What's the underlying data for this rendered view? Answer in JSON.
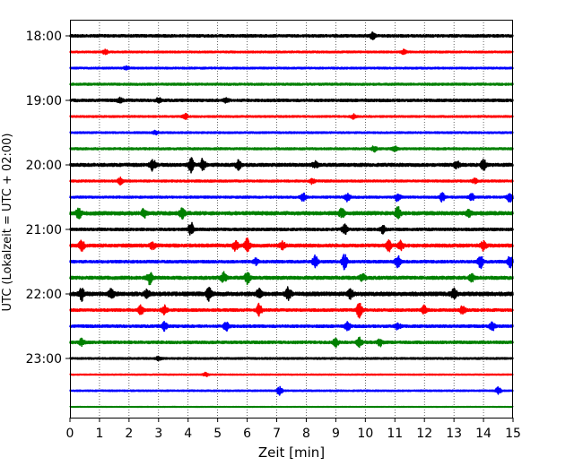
{
  "chart_data": {
    "type": "line",
    "subtype": "helicorder",
    "xlabel": "Zeit  [min]",
    "ylabel": "UTC (Lokalzeit = UTC + 02:00)",
    "xlim": [
      0,
      15
    ],
    "x_ticks": [
      "0",
      "1",
      "2",
      "3",
      "4",
      "5",
      "6",
      "7",
      "8",
      "9",
      "10",
      "11",
      "12",
      "13",
      "14",
      "15"
    ],
    "y_ticks": [
      "18:00",
      "19:00",
      "20:00",
      "21:00",
      "22:00",
      "23:00"
    ],
    "grid": "vertical dotted at each minute",
    "colors": [
      "#000000",
      "#ff0000",
      "#0000ff",
      "#008000"
    ],
    "traces": [
      {
        "start": "18:00",
        "color": "#000000",
        "level": 0.15,
        "events": [
          [
            10.25,
            0.35
          ]
        ]
      },
      {
        "start": "18:15",
        "color": "#ff0000",
        "level": 0.1,
        "events": [
          [
            1.2,
            0.25
          ],
          [
            11.3,
            0.25
          ]
        ]
      },
      {
        "start": "18:30",
        "color": "#0000ff",
        "level": 0.1,
        "events": [
          [
            1.9,
            0.2
          ]
        ]
      },
      {
        "start": "18:45",
        "color": "#008000",
        "level": 0.12,
        "events": []
      },
      {
        "start": "19:00",
        "color": "#000000",
        "level": 0.15,
        "events": [
          [
            1.7,
            0.25
          ],
          [
            3.0,
            0.25
          ],
          [
            5.3,
            0.25
          ]
        ]
      },
      {
        "start": "19:15",
        "color": "#ff0000",
        "level": 0.1,
        "events": [
          [
            3.9,
            0.3
          ],
          [
            9.6,
            0.25
          ]
        ]
      },
      {
        "start": "19:30",
        "color": "#0000ff",
        "level": 0.1,
        "events": [
          [
            2.9,
            0.2
          ]
        ]
      },
      {
        "start": "19:45",
        "color": "#008000",
        "level": 0.12,
        "events": [
          [
            10.3,
            0.3
          ],
          [
            11.0,
            0.25
          ]
        ]
      },
      {
        "start": "20:00",
        "color": "#000000",
        "level": 0.18,
        "events": [
          [
            2.8,
            0.7
          ],
          [
            4.1,
            0.8
          ],
          [
            4.5,
            0.7
          ],
          [
            5.7,
            0.5
          ],
          [
            8.3,
            0.4
          ],
          [
            13.1,
            0.4
          ],
          [
            14.0,
            0.6
          ]
        ]
      },
      {
        "start": "20:15",
        "color": "#ff0000",
        "level": 0.12,
        "events": [
          [
            1.7,
            0.4
          ],
          [
            8.2,
            0.3
          ],
          [
            13.7,
            0.3
          ]
        ]
      },
      {
        "start": "20:30",
        "color": "#0000ff",
        "level": 0.12,
        "events": [
          [
            7.9,
            0.5
          ],
          [
            9.4,
            0.5
          ],
          [
            11.1,
            0.5
          ],
          [
            12.6,
            0.5
          ],
          [
            13.6,
            0.4
          ],
          [
            14.9,
            0.6
          ]
        ]
      },
      {
        "start": "20:45",
        "color": "#008000",
        "level": 0.2,
        "events": [
          [
            0.3,
            0.6
          ],
          [
            2.5,
            0.5
          ],
          [
            3.8,
            0.6
          ],
          [
            9.2,
            0.5
          ],
          [
            11.1,
            0.7
          ],
          [
            13.5,
            0.4
          ]
        ]
      },
      {
        "start": "21:00",
        "color": "#000000",
        "level": 0.15,
        "events": [
          [
            4.1,
            0.8
          ],
          [
            9.3,
            0.6
          ],
          [
            10.6,
            0.4
          ]
        ]
      },
      {
        "start": "21:15",
        "color": "#ff0000",
        "level": 0.18,
        "events": [
          [
            0.4,
            0.6
          ],
          [
            2.8,
            0.4
          ],
          [
            5.6,
            0.6
          ],
          [
            6.0,
            0.8
          ],
          [
            7.2,
            0.4
          ],
          [
            10.8,
            0.6
          ],
          [
            11.2,
            0.5
          ],
          [
            14.0,
            0.6
          ]
        ]
      },
      {
        "start": "21:30",
        "color": "#0000ff",
        "level": 0.15,
        "events": [
          [
            6.3,
            0.4
          ],
          [
            8.3,
            0.7
          ],
          [
            9.3,
            0.9
          ],
          [
            11.1,
            0.8
          ],
          [
            13.9,
            0.8
          ],
          [
            14.9,
            0.7
          ]
        ]
      },
      {
        "start": "21:45",
        "color": "#008000",
        "level": 0.18,
        "events": [
          [
            2.7,
            0.7
          ],
          [
            5.2,
            0.6
          ],
          [
            6.0,
            0.7
          ],
          [
            9.9,
            0.5
          ],
          [
            13.6,
            0.4
          ]
        ]
      },
      {
        "start": "22:00",
        "color": "#000000",
        "level": 0.22,
        "events": [
          [
            0.4,
            0.7
          ],
          [
            1.4,
            0.5
          ],
          [
            2.6,
            0.5
          ],
          [
            4.7,
            0.7
          ],
          [
            6.4,
            0.5
          ],
          [
            7.4,
            0.8
          ],
          [
            9.5,
            0.5
          ],
          [
            13.0,
            0.6
          ]
        ]
      },
      {
        "start": "22:15",
        "color": "#ff0000",
        "level": 0.15,
        "events": [
          [
            2.4,
            0.5
          ],
          [
            3.2,
            0.6
          ],
          [
            6.4,
            0.7
          ],
          [
            9.8,
            0.9
          ],
          [
            12.0,
            0.5
          ],
          [
            13.3,
            0.5
          ]
        ]
      },
      {
        "start": "22:30",
        "color": "#0000ff",
        "level": 0.15,
        "events": [
          [
            3.2,
            0.5
          ],
          [
            5.3,
            0.6
          ],
          [
            9.4,
            0.5
          ],
          [
            11.1,
            0.4
          ],
          [
            14.3,
            0.5
          ]
        ]
      },
      {
        "start": "22:45",
        "color": "#008000",
        "level": 0.15,
        "events": [
          [
            0.4,
            0.4
          ],
          [
            9.0,
            0.5
          ],
          [
            9.8,
            0.5
          ],
          [
            10.5,
            0.4
          ]
        ]
      },
      {
        "start": "23:00",
        "color": "#000000",
        "level": 0.1,
        "events": [
          [
            3.0,
            0.2
          ]
        ]
      },
      {
        "start": "23:15",
        "color": "#ff0000",
        "level": 0.06,
        "events": [
          [
            4.6,
            0.25
          ]
        ]
      },
      {
        "start": "23:30",
        "color": "#0000ff",
        "level": 0.08,
        "events": [
          [
            7.1,
            0.5
          ],
          [
            14.5,
            0.4
          ]
        ]
      },
      {
        "start": "23:45",
        "color": "#008000",
        "level": 0.04,
        "events": []
      }
    ]
  }
}
